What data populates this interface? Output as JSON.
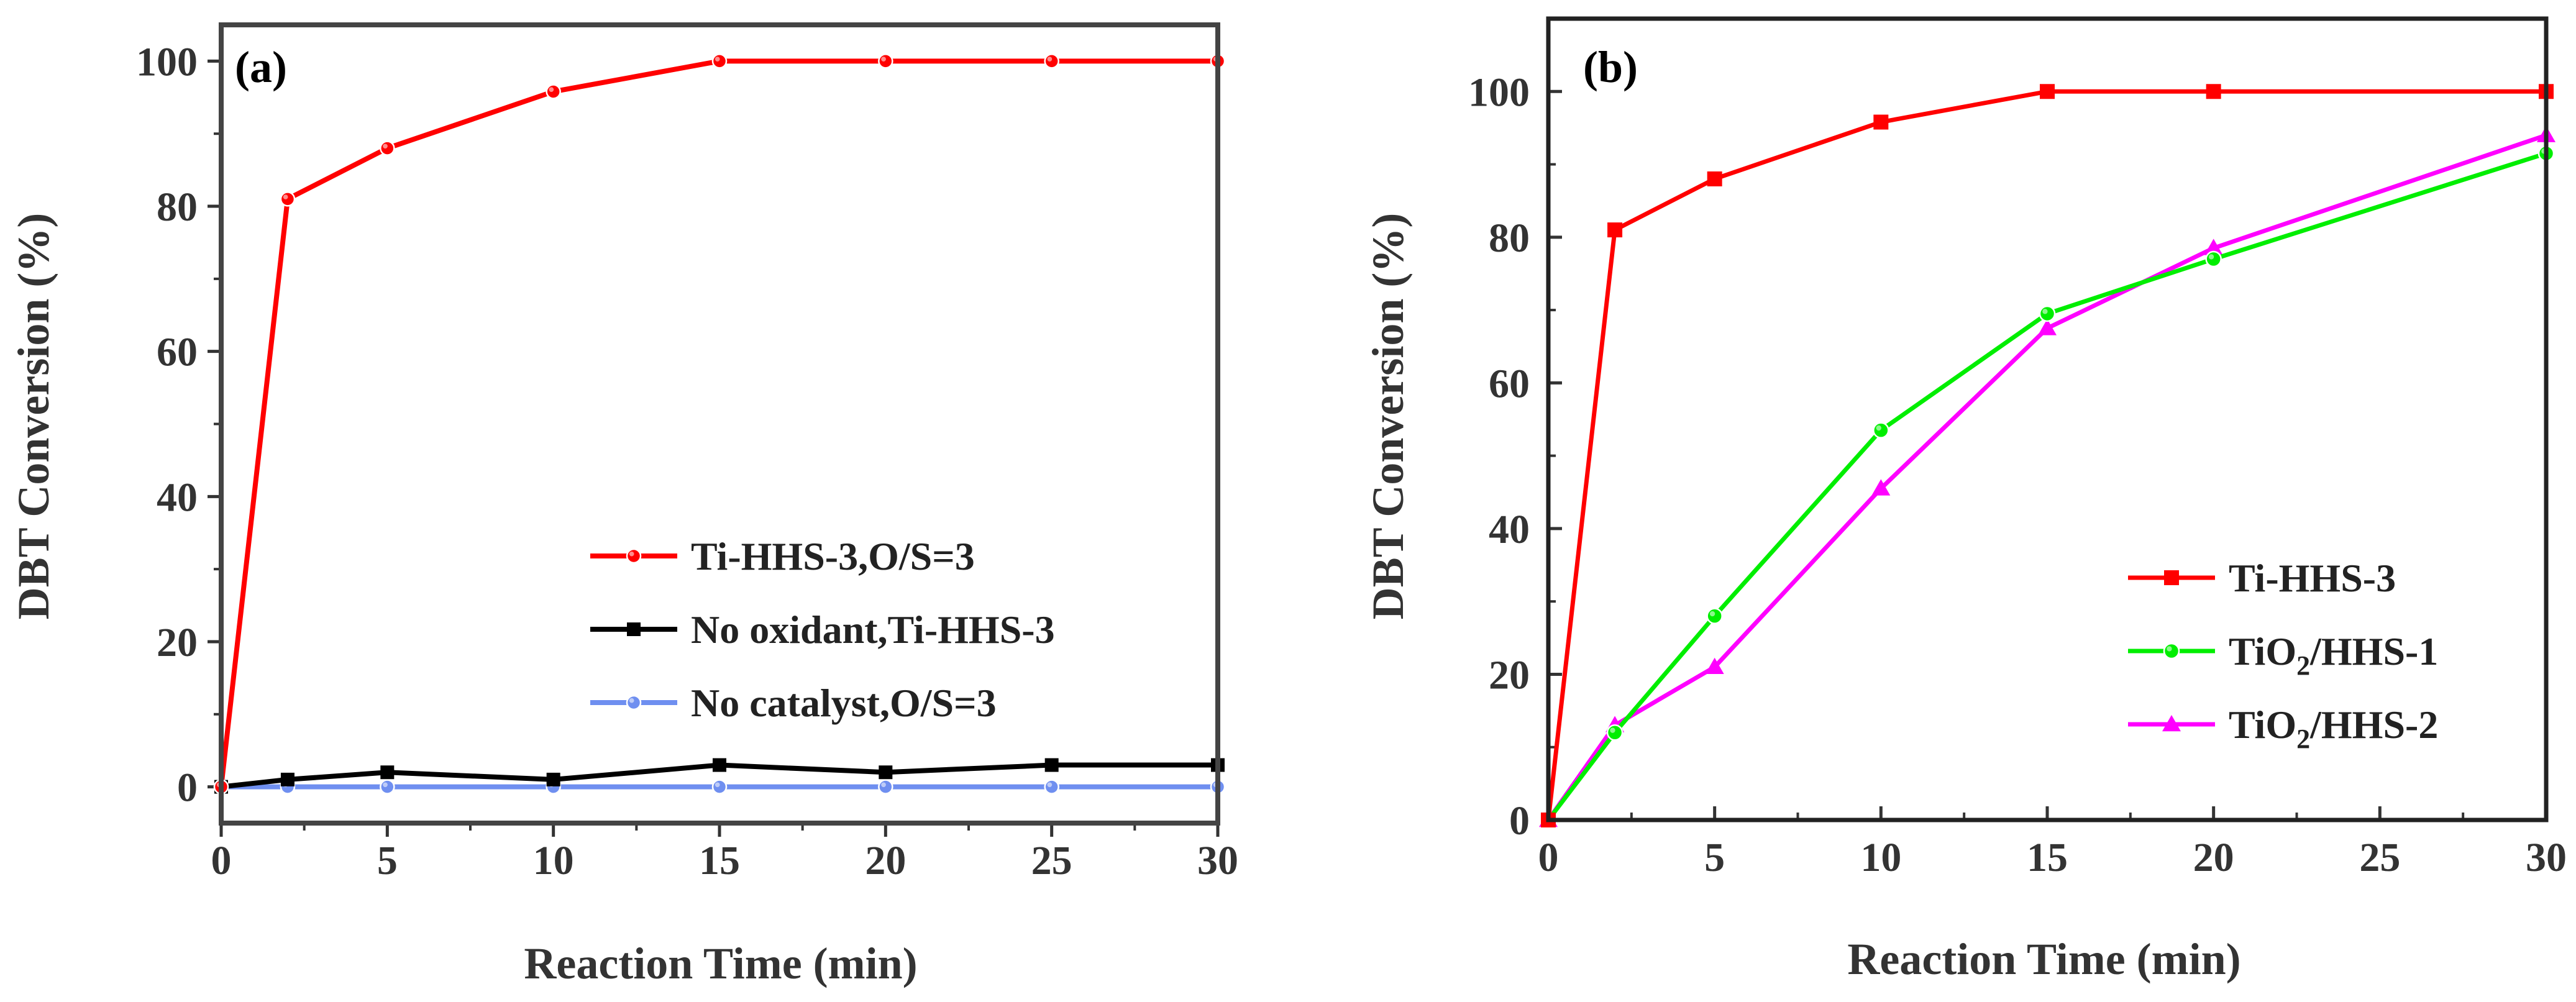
{
  "chart_data": [
    {
      "panel": "(a)",
      "type": "line",
      "xlabel": "Reaction Time (min)",
      "ylabel": "DBT Conversion (%)",
      "xlim": [
        0,
        30
      ],
      "ylim": [
        -5,
        105
      ],
      "xticks": [
        0,
        5,
        10,
        15,
        20,
        25,
        30
      ],
      "yticks": [
        0,
        20,
        40,
        60,
        80,
        100
      ],
      "legend_position": "center-right",
      "series": [
        {
          "name": "Ti-HHS-3,O/S=3",
          "color": "#ff0000",
          "marker": "circle",
          "x": [
            0,
            2,
            5,
            10,
            15,
            20,
            25,
            30
          ],
          "y": [
            0,
            81,
            88,
            95.8,
            100,
            100,
            100,
            100
          ]
        },
        {
          "name": "No oxidant,Ti-HHS-3",
          "color": "#000000",
          "marker": "square",
          "x": [
            0,
            2,
            5,
            10,
            15,
            20,
            25,
            30
          ],
          "y": [
            0,
            1,
            2,
            1,
            3,
            2,
            3,
            3
          ]
        },
        {
          "name": "No catalyst,O/S=3",
          "color": "#6f8ff0",
          "marker": "circle",
          "x": [
            0,
            2,
            5,
            10,
            15,
            20,
            25,
            30
          ],
          "y": [
            0,
            0,
            0,
            0,
            0,
            0,
            0,
            0
          ]
        }
      ]
    },
    {
      "panel": "(b)",
      "type": "line",
      "xlabel": "Reaction Time (min)",
      "ylabel": "DBT Conversion (%)",
      "xlim": [
        0,
        30
      ],
      "ylim": [
        0,
        110
      ],
      "xticks": [
        0,
        5,
        10,
        15,
        20,
        25,
        30
      ],
      "yticks": [
        0,
        20,
        40,
        60,
        80,
        100
      ],
      "legend_position": "lower-right",
      "series": [
        {
          "name": "Ti-HHS-3",
          "color": "#ff0000",
          "marker": "square",
          "x": [
            0,
            2,
            5,
            10,
            15,
            20,
            30
          ],
          "y": [
            0,
            81,
            88,
            95.8,
            100,
            100,
            100
          ]
        },
        {
          "name": "TiO2/HHS-1",
          "name_parts": [
            "TiO",
            "2",
            "/HHS-1"
          ],
          "color": "#00ee00",
          "marker": "circle",
          "x": [
            0,
            2,
            5,
            10,
            15,
            20,
            30
          ],
          "y": [
            0,
            12,
            28,
            53.5,
            69.5,
            77,
            91.5
          ]
        },
        {
          "name": "TiO2/HHS-2",
          "name_parts": [
            "TiO",
            "2",
            "/HHS-2"
          ],
          "color": "#ff00ff",
          "marker": "triangle",
          "x": [
            0,
            2,
            5,
            10,
            15,
            20,
            30
          ],
          "y": [
            0,
            13,
            21,
            45.5,
            67.5,
            78.5,
            94
          ]
        }
      ]
    }
  ]
}
